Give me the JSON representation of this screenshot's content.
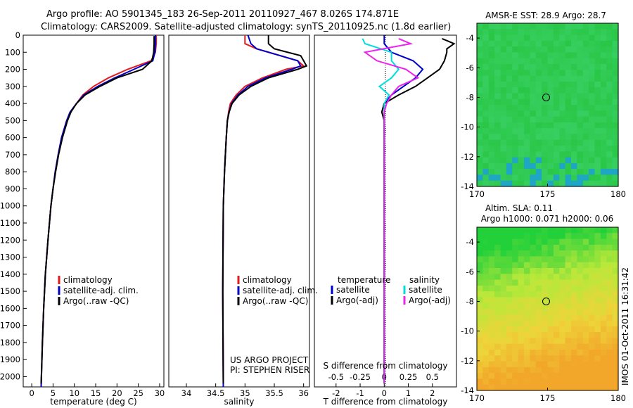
{
  "header": {
    "line1": "Argo profile: AO 5901345_183 26-Sep-2011 20110927_467 8.026S 174.871E",
    "line2": "Climatology: CARS2009. Satellite-adjusted climatology: synTS_20110925.nc (1.8d earlier)"
  },
  "credits": {
    "project": "US ARGO PROJECT",
    "pi": "PI: STEPHEN RISER",
    "stamp": "IMOS 01-Oct-2011 16:31:42"
  },
  "colors": {
    "climatology": "#e41a1c",
    "satellite": "#0000cc",
    "argo": "#000000",
    "salinity_sat": "#00dddd",
    "salinity_argo": "#ee22ee",
    "map_circle": "#000000"
  },
  "chart_data": [
    {
      "type": "line",
      "id": "temperature",
      "xlabel": "temperature (deg C)",
      "xlim": [
        -2,
        31
      ],
      "xticks": [
        0,
        5,
        10,
        15,
        20,
        25,
        30
      ],
      "ylim": [
        2060,
        0
      ],
      "yticks": [
        0,
        100,
        200,
        300,
        400,
        500,
        600,
        700,
        800,
        900,
        1000,
        1100,
        1200,
        1300,
        1400,
        1500,
        1600,
        1700,
        1800,
        1900,
        2000
      ],
      "legend": [
        "climatology",
        "satellite-adj. clim.",
        "Argo(..raw -QC)"
      ],
      "legend_placement": "lower-left",
      "series": [
        {
          "name": "climatology",
          "depth": [
            0,
            50,
            100,
            150,
            200,
            250,
            300,
            350,
            400,
            450,
            500,
            600,
            700,
            800,
            900,
            1000,
            1200,
            1400,
            1600,
            1800,
            2060
          ],
          "values": [
            29.2,
            29.2,
            29.0,
            28.0,
            22.5,
            18.0,
            14.5,
            12.0,
            10.5,
            9.0,
            8.2,
            7.0,
            6.2,
            5.5,
            5.0,
            4.5,
            3.8,
            3.2,
            2.8,
            2.5,
            2.2
          ]
        },
        {
          "name": "satellite-adj. clim.",
          "depth": [
            0,
            50,
            100,
            150,
            200,
            250,
            300,
            350,
            400,
            450,
            500,
            600,
            700,
            800,
            900,
            1000,
            1200,
            1400,
            1600,
            1800,
            2060
          ],
          "values": [
            29.0,
            29.0,
            28.9,
            28.4,
            24.0,
            19.5,
            15.5,
            12.2,
            10.5,
            9.0,
            8.2,
            7.0,
            6.2,
            5.5,
            5.0,
            4.5,
            3.8,
            3.2,
            2.8,
            2.5,
            2.2
          ]
        },
        {
          "name": "Argo(..raw -QC)",
          "depth": [
            5,
            50,
            100,
            150,
            200,
            250,
            300,
            350,
            400,
            450,
            500,
            600,
            700,
            800,
            900,
            1000,
            1200,
            1400,
            1600,
            1800,
            2040
          ],
          "values": [
            28.7,
            28.7,
            28.6,
            28.2,
            26.0,
            20.0,
            16.0,
            12.5,
            10.5,
            9.2,
            8.4,
            7.2,
            6.3,
            5.6,
            5.0,
            4.5,
            3.8,
            3.2,
            2.8,
            2.5,
            2.2
          ]
        }
      ]
    },
    {
      "type": "line",
      "id": "salinity",
      "xlabel": "salinity",
      "xlim": [
        33.7,
        36.1
      ],
      "xticks": [
        34,
        34.5,
        35,
        35.5,
        36
      ],
      "ylim": [
        2060,
        0
      ],
      "legend": [
        "climatology",
        "satellite-adj. clim.",
        "Argo(..raw -QC)"
      ],
      "legend_placement": "lower-right",
      "series": [
        {
          "name": "climatology",
          "depth": [
            0,
            50,
            80,
            120,
            150,
            180,
            200,
            250,
            300,
            350,
            400,
            450,
            500,
            600,
            800,
            1000,
            1500,
            2060
          ],
          "values": [
            35.0,
            35.0,
            35.2,
            35.6,
            35.9,
            36.0,
            35.7,
            35.3,
            35.0,
            34.85,
            34.75,
            34.72,
            34.7,
            34.68,
            34.65,
            34.63,
            34.62,
            34.63
          ]
        },
        {
          "name": "satellite-adj. clim.",
          "depth": [
            0,
            50,
            80,
            120,
            150,
            180,
            200,
            250,
            300,
            350,
            400,
            450,
            500,
            600,
            800,
            1000,
            1500,
            2060
          ],
          "values": [
            35.05,
            35.1,
            35.2,
            35.6,
            35.9,
            35.95,
            35.8,
            35.35,
            35.05,
            34.88,
            34.77,
            34.73,
            34.7,
            34.68,
            34.65,
            34.63,
            34.62,
            34.63
          ]
        },
        {
          "name": "Argo(..raw -QC)",
          "depth": [
            0,
            50,
            80,
            120,
            150,
            180,
            200,
            250,
            300,
            350,
            400,
            450,
            500,
            600,
            800,
            1000,
            1500,
            2040
          ],
          "values": [
            35.4,
            35.4,
            35.5,
            35.95,
            36.0,
            36.05,
            35.9,
            35.4,
            35.1,
            34.9,
            34.78,
            34.73,
            34.7,
            34.68,
            34.65,
            34.63,
            34.62,
            34.63
          ]
        }
      ]
    },
    {
      "type": "line",
      "id": "differences",
      "xlabel": "T difference from climatology",
      "xlabel2": "S difference from climatology",
      "xlim": [
        -2.9,
        3.0
      ],
      "xticks": [
        -2,
        -1,
        0,
        1,
        2
      ],
      "xticks_top": [
        -0.5,
        -0.25,
        0,
        0.25,
        0.5
      ],
      "ylim": [
        2060,
        0
      ],
      "legend_temperature": {
        "title": "temperature",
        "entries": [
          "satellite",
          "Argo(-adj)"
        ]
      },
      "legend_salinity": {
        "title": "salinity",
        "entries": [
          "satellite",
          "Argo(-adj)"
        ]
      },
      "legend_placement": "lower",
      "series": [
        {
          "name": "temperature satellite",
          "depth": [
            0,
            50,
            100,
            150,
            200,
            250,
            300,
            350,
            400,
            450,
            500,
            600,
            800,
            1000,
            1500,
            2040
          ],
          "values": [
            0.0,
            0.0,
            0.3,
            1.2,
            1.6,
            1.3,
            0.8,
            0.3,
            0.0,
            -0.1,
            0.0,
            0.0,
            0.0,
            0.0,
            0.0,
            0.0
          ]
        },
        {
          "name": "temperature Argo(-adj)",
          "depth": [
            20,
            50,
            80,
            100,
            150,
            200,
            250,
            300,
            350,
            400,
            450,
            500,
            600,
            800,
            1000,
            1500,
            2040
          ],
          "values": [
            2.4,
            2.9,
            2.6,
            2.6,
            2.5,
            2.3,
            1.8,
            1.3,
            0.6,
            0.0,
            -0.1,
            0.0,
            0.0,
            0.0,
            0.0,
            0.0,
            0.0
          ]
        },
        {
          "name": "salinity satellite",
          "depth": [
            20,
            50,
            100,
            150,
            200,
            250,
            300,
            350,
            400,
            450,
            500,
            600,
            800,
            1000,
            1500,
            2040
          ],
          "values": [
            -0.9,
            -0.8,
            0.3,
            0.3,
            0.6,
            0.3,
            -0.2,
            0.2,
            0.0,
            0.0,
            0.0,
            0.0,
            0.0,
            0.0,
            0.0,
            0.0
          ]
        },
        {
          "name": "salinity Argo(-adj)",
          "depth": [
            20,
            50,
            100,
            150,
            200,
            250,
            300,
            350,
            400,
            450,
            500,
            600,
            800,
            1000,
            1500,
            2040
          ],
          "values": [
            0.6,
            1.1,
            -0.8,
            -0.3,
            0.9,
            1.4,
            0.6,
            0.3,
            0.1,
            0.0,
            0.0,
            0.0,
            0.0,
            0.0,
            0.0,
            0.0
          ]
        }
      ]
    },
    {
      "type": "heatmap",
      "id": "sst-map",
      "title": "AMSR-E SST: 28.9 Argo: 28.7",
      "xlim": [
        170,
        180
      ],
      "ylim": [
        -14,
        -3
      ],
      "xticks": [
        170,
        175,
        180
      ],
      "yticks": [
        -4,
        -6,
        -8,
        -10,
        -12,
        -14
      ],
      "argo_location": {
        "lon": 174.9,
        "lat": -8.0
      },
      "colors": [
        "#22c33a",
        "#3ad065",
        "#1fa6c4",
        "#00449a"
      ]
    },
    {
      "type": "heatmap",
      "id": "sla-map",
      "title": "Altim. SLA: 0.11",
      "subtitle": "Argo h1000: 0.071 h2000: 0.06",
      "xlim": [
        170,
        180
      ],
      "ylim": [
        -14,
        -3
      ],
      "xticks": [
        170,
        175,
        180
      ],
      "yticks": [
        -4,
        -6,
        -8,
        -10,
        -12,
        -14
      ],
      "argo_location": {
        "lon": 174.9,
        "lat": -8.0
      },
      "colors": [
        "#22d03a",
        "#b9e83a",
        "#eed43a",
        "#f2a62a"
      ]
    }
  ]
}
